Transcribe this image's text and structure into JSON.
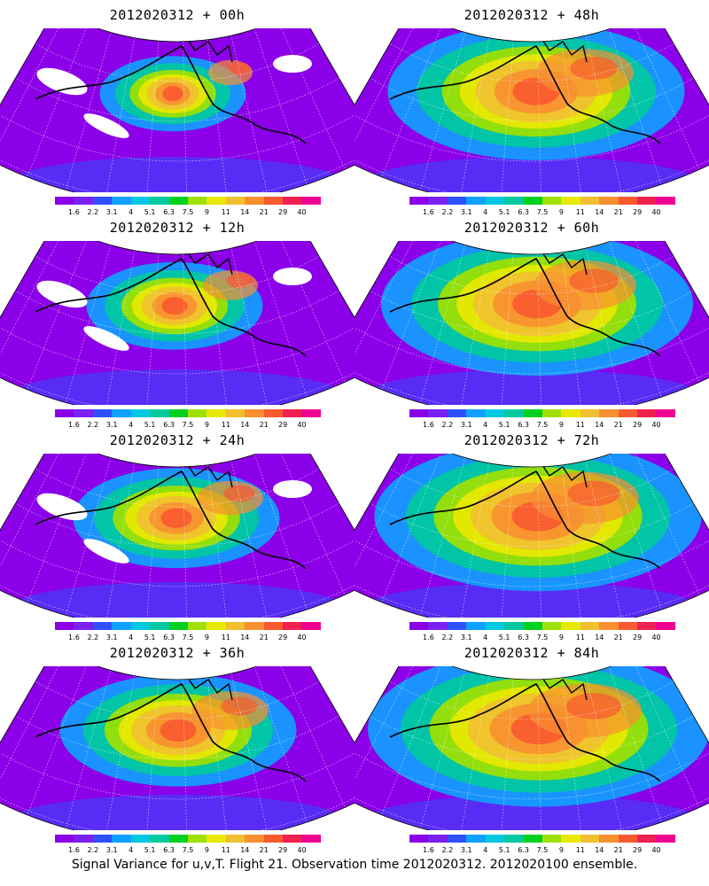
{
  "panels": [
    {
      "title": "2012020312 + 00h"
    },
    {
      "title": "2012020312 + 48h"
    },
    {
      "title": "2012020312 + 12h"
    },
    {
      "title": "2012020312 + 60h"
    },
    {
      "title": "2012020312 + 24h"
    },
    {
      "title": "2012020312 + 72h"
    },
    {
      "title": "2012020312 + 36h"
    },
    {
      "title": "2012020312 + 84h"
    }
  ],
  "colorbar": {
    "labels": [
      "1.6",
      "2.2",
      "3.1",
      "4",
      "5.1",
      "6.3",
      "7.5",
      "9",
      "11",
      "14",
      "21",
      "29",
      "40"
    ],
    "colors": [
      "#8b00e8",
      "#7a20f0",
      "#3050ff",
      "#10a0ff",
      "#00c8e0",
      "#00c8a0",
      "#00d020",
      "#a0e000",
      "#e8e800",
      "#f0c030",
      "#f89030",
      "#f85a30",
      "#f02050",
      "#f00090"
    ]
  },
  "footer": "Signal Variance for u,v,T. Flight 21. Observation time 2012020312. 2012020100 ensemble."
}
